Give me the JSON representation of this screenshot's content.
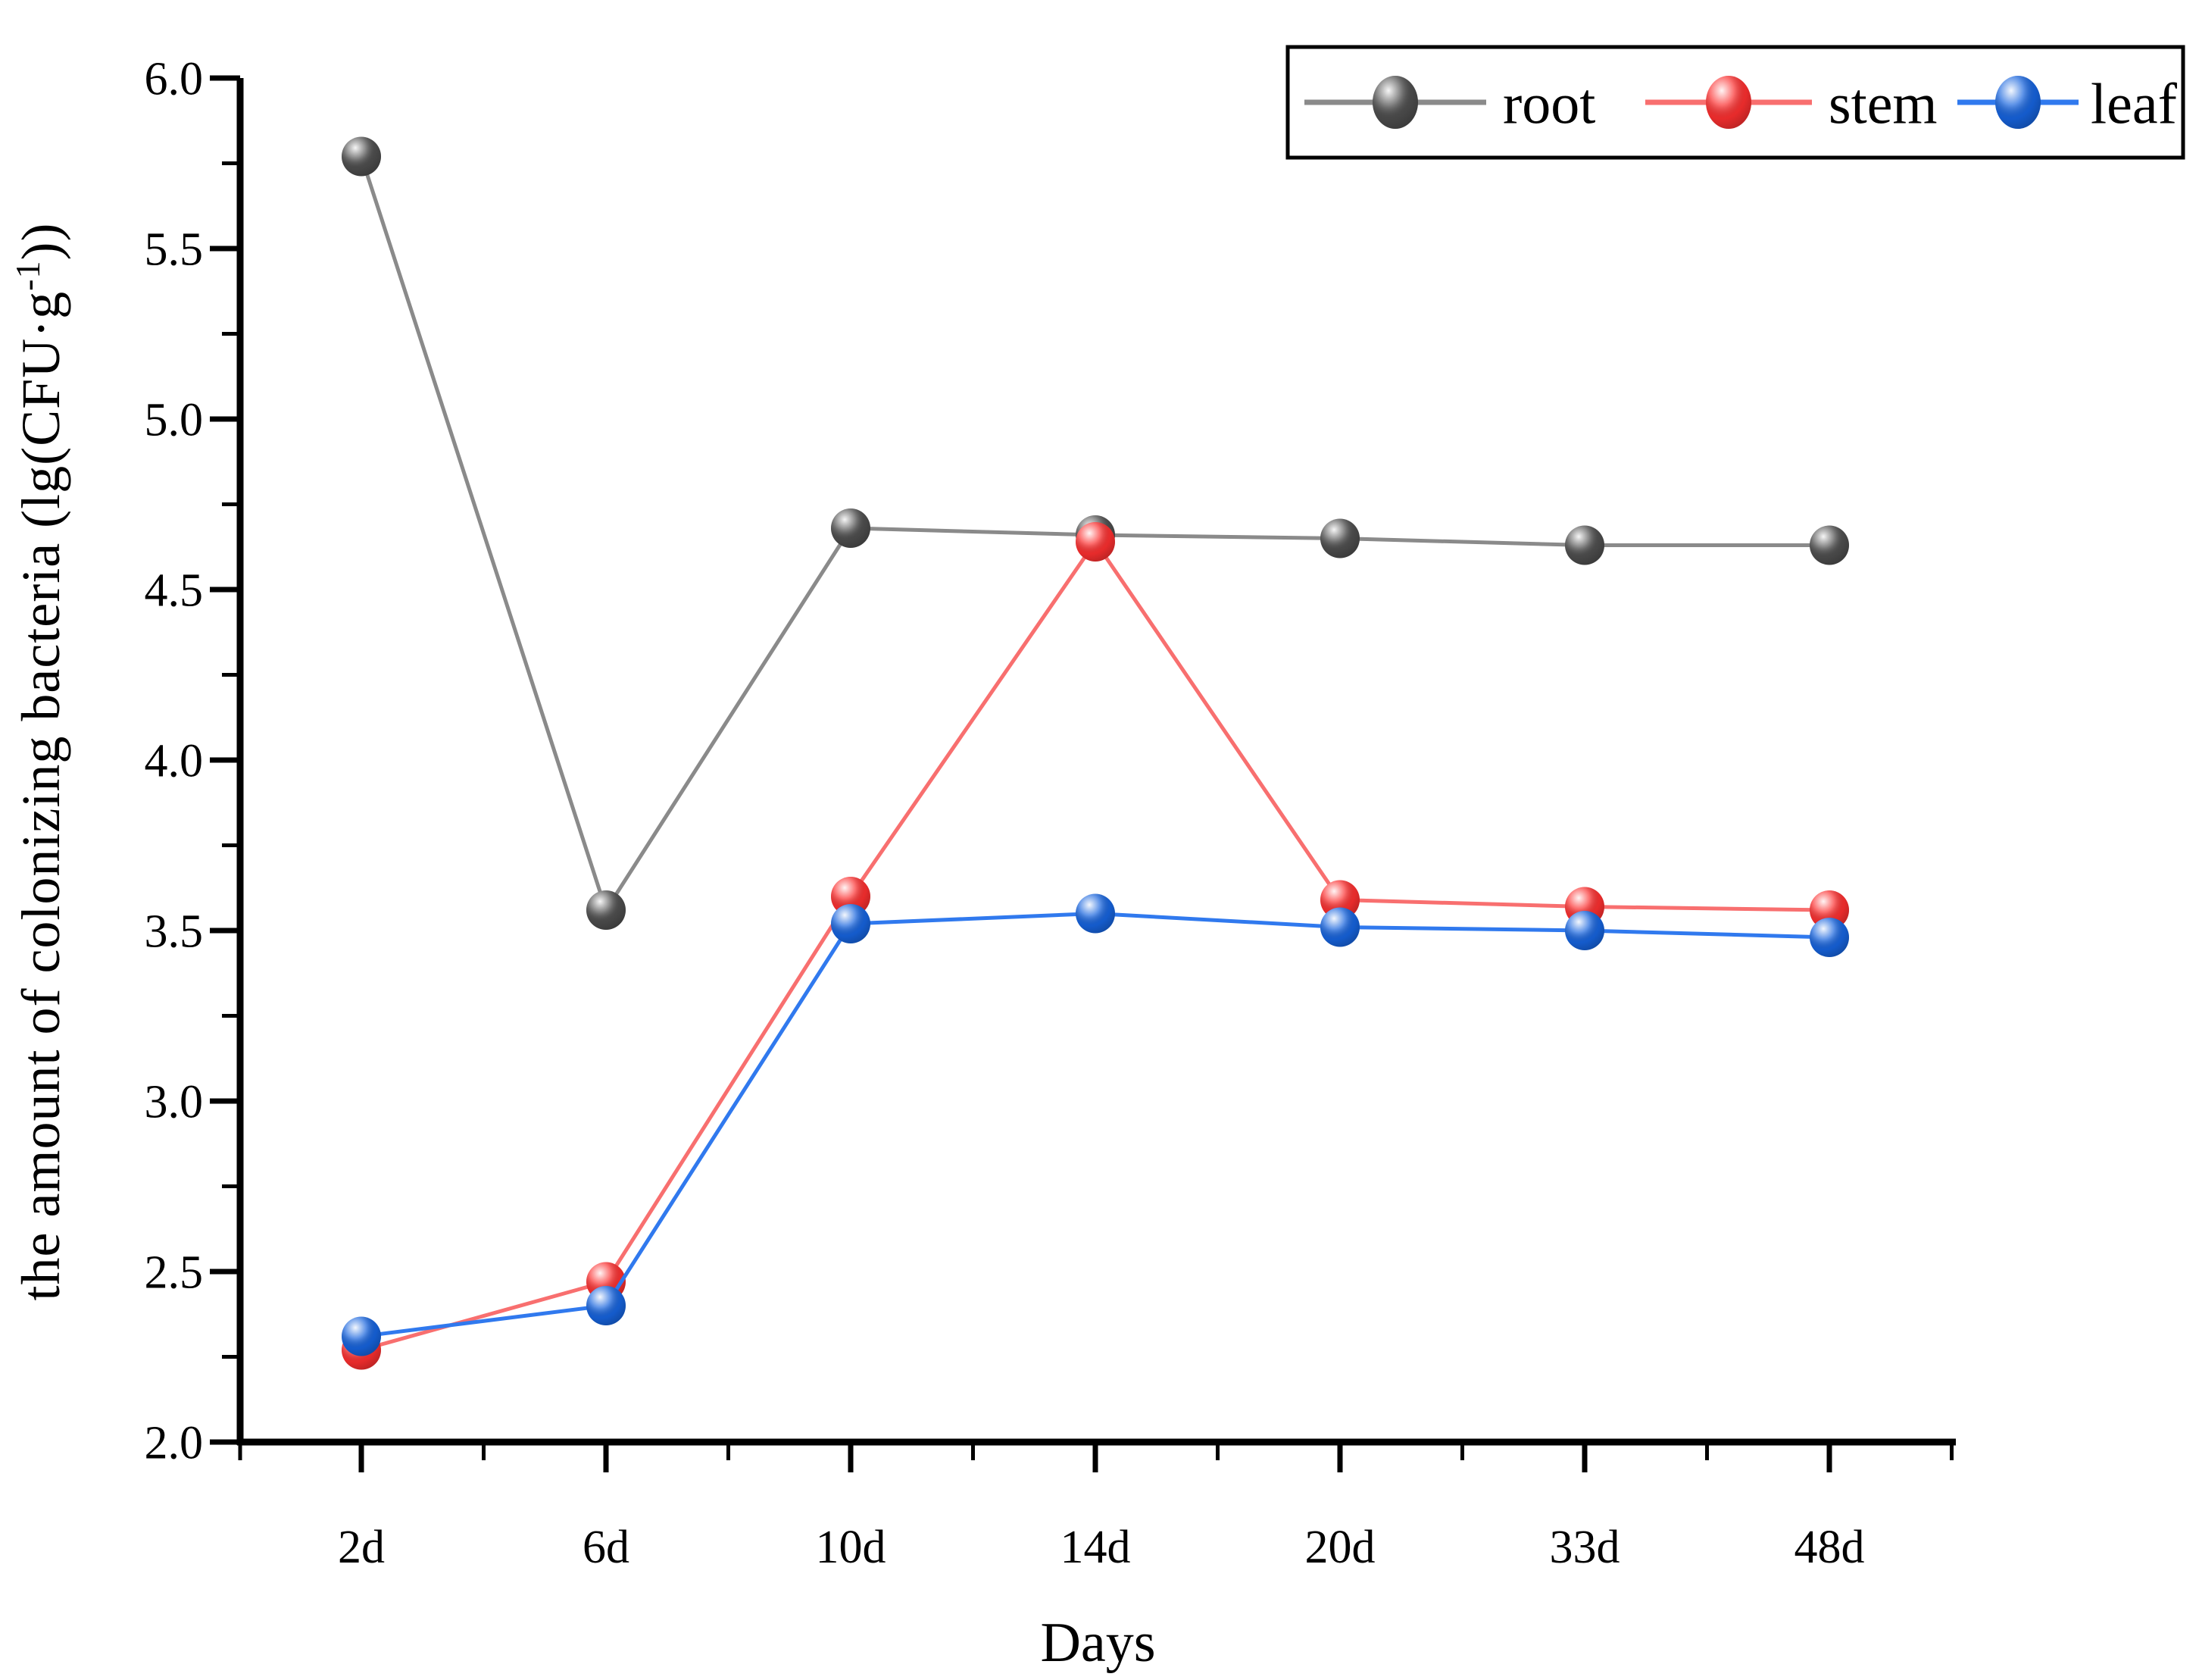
{
  "chart_data": {
    "type": "line",
    "title": "",
    "xlabel": "Days",
    "ylabel": "the amount of colonizing bacteria (lg(CFU·g⁻¹))",
    "ylabel_parts": {
      "pre": "the amount of colonizing bacteria (lg(CFU·g",
      "sup": "-1",
      "post": "))"
    },
    "categories": [
      "2d",
      "6d",
      "10d",
      "14d",
      "20d",
      "33d",
      "48d"
    ],
    "series": [
      {
        "name": "root",
        "values": [
          5.77,
          3.56,
          4.68,
          4.66,
          4.65,
          4.63,
          4.63
        ],
        "marker_color": "#4d4d4d",
        "line_color": "#8a8a8a"
      },
      {
        "name": "stem",
        "values": [
          2.27,
          2.47,
          3.6,
          4.64,
          3.59,
          3.57,
          3.56
        ],
        "marker_color": "#fb2f2f",
        "line_color": "#f86f6f"
      },
      {
        "name": "leaf",
        "values": [
          2.31,
          2.4,
          3.52,
          3.55,
          3.51,
          3.5,
          3.48
        ],
        "marker_color": "#1663dd",
        "line_color": "#3079ee"
      }
    ],
    "ylim": [
      2.0,
      6.0
    ],
    "ytick_step": 0.5,
    "ytick_minor_step": 0.25,
    "yticks": [
      "2.0",
      "2.5",
      "3.0",
      "3.5",
      "4.0",
      "4.5",
      "5.0",
      "5.5",
      "6.0"
    ],
    "grid": false,
    "legend_position": "top-right",
    "legend_entries": [
      "root",
      "stem",
      "leaf"
    ]
  }
}
